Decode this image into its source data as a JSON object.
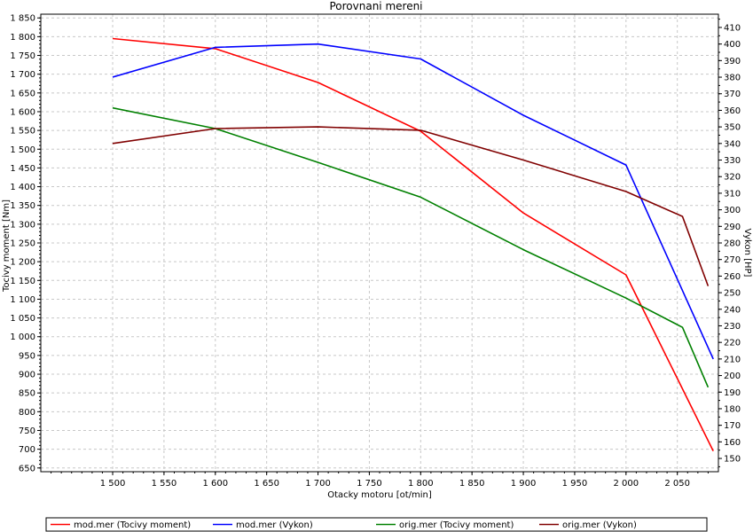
{
  "chart_data": {
    "type": "line",
    "title": "Porovnani mereni",
    "xlabel": "Otacky motoru [ot/min]",
    "ylabel_left": "Tocivy moment [Nm]",
    "ylabel_right": "Vykon [HP]",
    "xlim": [
      1430,
      2090
    ],
    "ylim_left": [
      640,
      1860
    ],
    "ylim_right": [
      142,
      418
    ],
    "x_ticks": [
      1500,
      1550,
      1600,
      1650,
      1700,
      1750,
      1800,
      1850,
      1900,
      1950,
      2000,
      2050
    ],
    "x_tick_labels": [
      "1 500",
      "1 550",
      "1 600",
      "1 650",
      "1 700",
      "1 750",
      "1 800",
      "1 850",
      "1 900",
      "1 950",
      "2 000",
      "2 050"
    ],
    "y_left_ticks": [
      650,
      700,
      750,
      800,
      850,
      900,
      950,
      1000,
      1050,
      1100,
      1150,
      1200,
      1250,
      1300,
      1350,
      1400,
      1450,
      1500,
      1550,
      1600,
      1650,
      1700,
      1750,
      1800,
      1850
    ],
    "y_left_tick_labels": [
      "650",
      "700",
      "750",
      "800",
      "850",
      "900",
      "950",
      "1 000",
      "1 050",
      "1 100",
      "1 150",
      "1 200",
      "1 250",
      "1 300",
      "1 350",
      "1 400",
      "1 450",
      "1 500",
      "1 550",
      "1 600",
      "1 650",
      "1 700",
      "1 750",
      "1 800",
      "1 850"
    ],
    "y_right_ticks": [
      150,
      160,
      170,
      180,
      190,
      200,
      210,
      220,
      230,
      240,
      250,
      260,
      270,
      280,
      290,
      300,
      310,
      320,
      330,
      340,
      350,
      360,
      370,
      380,
      390,
      400,
      410
    ],
    "grid": true,
    "legend_position": "bottom",
    "series": [
      {
        "name": "mod.mer  (Tocivy moment)",
        "axis": "left",
        "color": "#ff0000",
        "x": [
          1500,
          1600,
          1700,
          1800,
          1900,
          2000,
          2085
        ],
        "y": [
          1795,
          1768,
          1678,
          1548,
          1330,
          1165,
          695
        ]
      },
      {
        "name": "mod.mer  (Vykon)",
        "axis": "right",
        "color": "#0000ff",
        "x": [
          1500,
          1600,
          1700,
          1800,
          1900,
          2000,
          2085
        ],
        "y": [
          380,
          398,
          400,
          391,
          357,
          327,
          210
        ]
      },
      {
        "name": "orig.mer  (Tocivy moment)",
        "axis": "left",
        "color": "#008000",
        "x": [
          1500,
          1600,
          1700,
          1800,
          1900,
          2000,
          2055,
          2080
        ],
        "y": [
          1610,
          1555,
          1465,
          1372,
          1232,
          1103,
          1025,
          865
        ]
      },
      {
        "name": "orig.mer  (Vykon)",
        "axis": "right",
        "color": "#800000",
        "x": [
          1500,
          1600,
          1700,
          1800,
          1900,
          2000,
          2055,
          2080
        ],
        "y": [
          340,
          349,
          350,
          348,
          330,
          311,
          296,
          254
        ]
      }
    ]
  }
}
